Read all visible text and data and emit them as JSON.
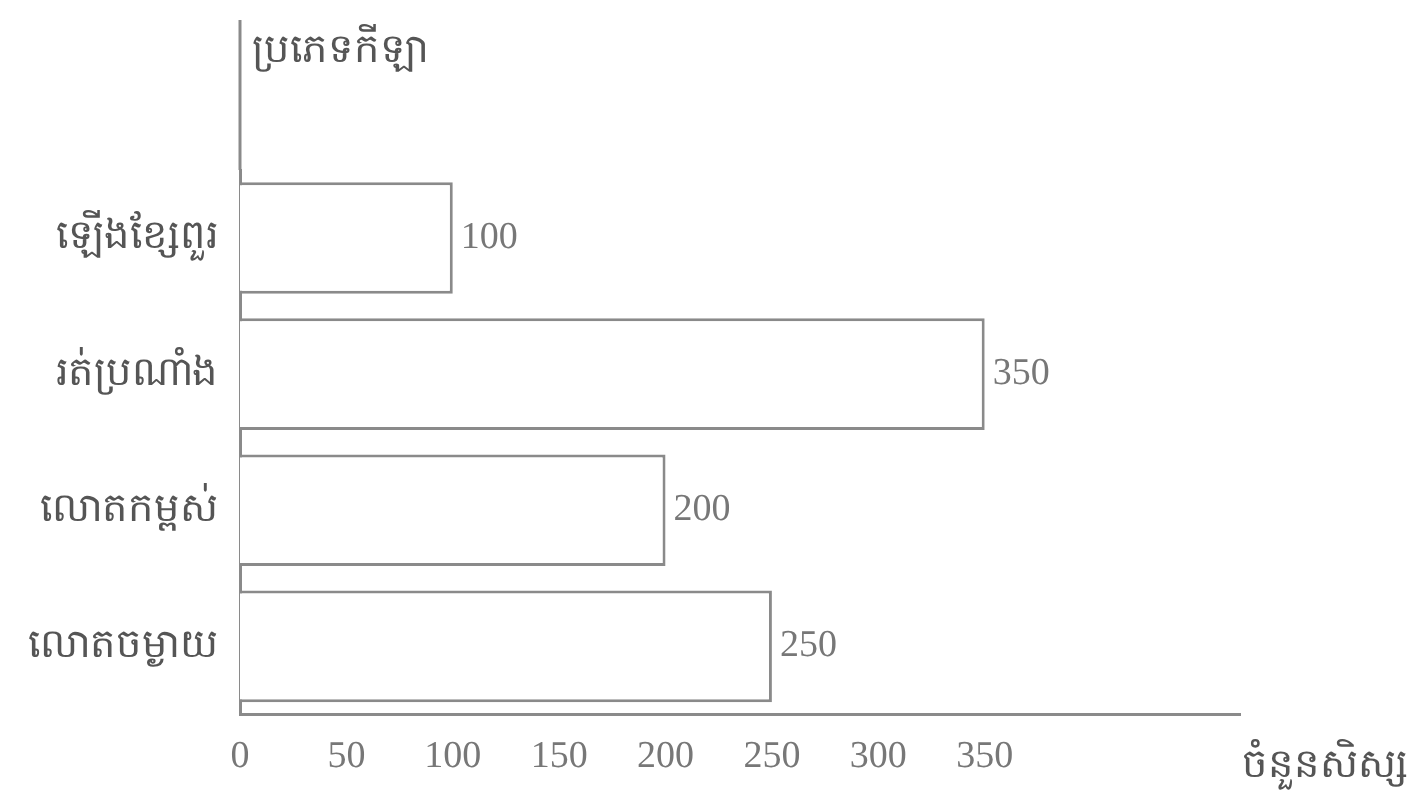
{
  "chart_data": {
    "type": "bar",
    "orientation": "horizontal",
    "ylabel": "ប្រភេទកីឡា",
    "xlabel": "ចំនួនសិស្ស",
    "categories": [
      "ឡើងខ្សែពួរ",
      "រត់ប្រណាំង",
      "លោតកម្ពស់",
      "លោតចម្ងាយ"
    ],
    "values": [
      100,
      350,
      200,
      250
    ],
    "color": "#ffffff",
    "xlim": [
      0,
      470
    ],
    "xticks": [
      0,
      50,
      100,
      150,
      200,
      250,
      300,
      350
    ],
    "grid": false,
    "legend": false,
    "data_labels": true
  }
}
